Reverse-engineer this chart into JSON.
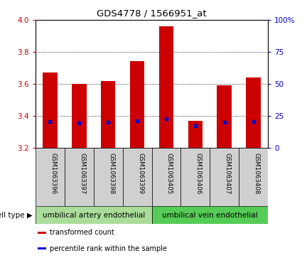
{
  "title": "GDS4778 / 1566951_at",
  "samples": [
    "GSM1063396",
    "GSM1063397",
    "GSM1063398",
    "GSM1063399",
    "GSM1063405",
    "GSM1063406",
    "GSM1063407",
    "GSM1063408"
  ],
  "transformed_count": [
    3.67,
    3.6,
    3.62,
    3.74,
    3.96,
    3.37,
    3.59,
    3.64
  ],
  "percentile_rank": [
    20.5,
    19.5,
    20.0,
    21.0,
    22.5,
    17.0,
    20.0,
    20.5
  ],
  "bar_bottom": 3.2,
  "ylim": [
    3.2,
    4.0
  ],
  "yticks": [
    3.2,
    3.4,
    3.6,
    3.8,
    4.0
  ],
  "right_yticks": [
    0,
    25,
    50,
    75,
    100
  ],
  "right_ylim": [
    0,
    100
  ],
  "bar_color": "#cc0000",
  "percentile_color": "#0000cc",
  "bar_width": 0.5,
  "groups": [
    {
      "label": "umbilical artery endothelial",
      "n": 4,
      "color": "#aadd99"
    },
    {
      "label": "umbilical vein endothelial",
      "n": 4,
      "color": "#55cc55"
    }
  ],
  "cell_type_label": "cell type",
  "legend_items": [
    {
      "label": "transformed count",
      "color": "#cc0000"
    },
    {
      "label": "percentile rank within the sample",
      "color": "#0000cc"
    }
  ],
  "tick_color_left": "#cc0000",
  "tick_color_right": "#0000cc",
  "sample_box_color": "#d0d0d0"
}
